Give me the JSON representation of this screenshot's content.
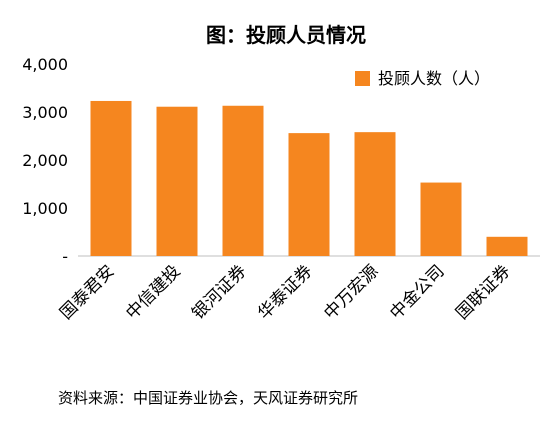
{
  "chart_data": {
    "type": "bar",
    "title": "图：投顾人员情况",
    "categories": [
      "国泰君安",
      "中信建投",
      "银河证券",
      "华泰证券",
      "中万宏源",
      "中金公司",
      "国联证券"
    ],
    "series": [
      {
        "name": "投顾人数（人）",
        "values": [
          3230,
          3110,
          3130,
          2560,
          2580,
          1530,
          400
        ]
      }
    ],
    "y_ticks": [
      "4,000",
      "3,000",
      "2,000",
      "1,000",
      "-"
    ],
    "ylim": [
      0,
      4000
    ],
    "grid": false,
    "legend_position": "top-right",
    "colors": {
      "bar": "#F5861F",
      "text": "#000000",
      "axis": "#BFBFBF"
    }
  },
  "source_note": "资料来源：中国证券业协会，天风证券研究所"
}
